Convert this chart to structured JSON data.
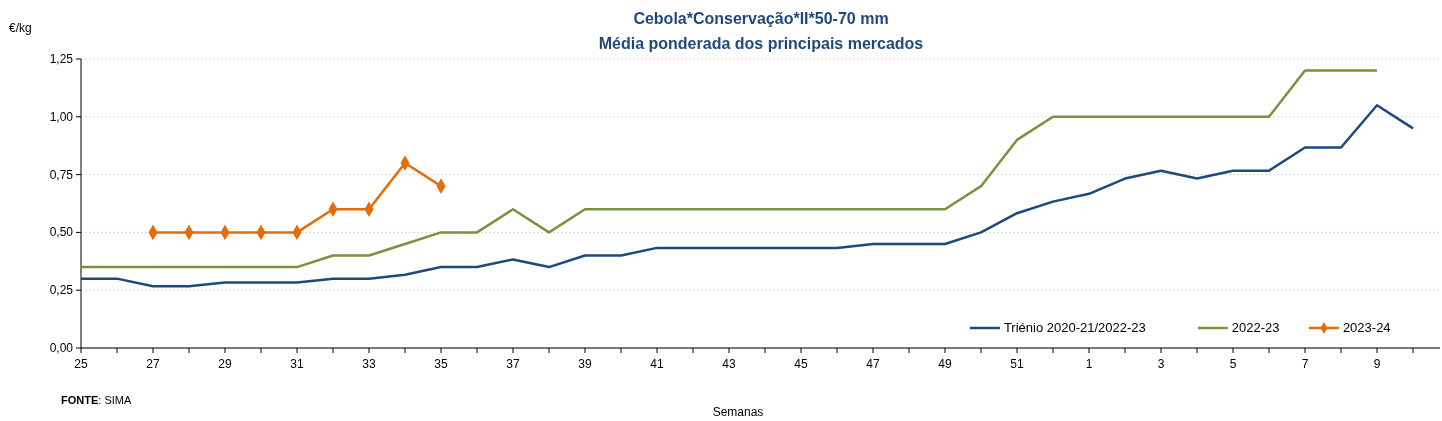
{
  "chart_data": {
    "type": "line",
    "title": "Cebola*Conservação*II*50-70 mm",
    "subtitle": "Média ponderada dos principais mercados",
    "ylabel": "€/kg",
    "xlabel": "Semanas",
    "categories": [
      "25",
      null,
      "27",
      null,
      "29",
      null,
      "31",
      null,
      "33",
      null,
      "35",
      null,
      "37",
      null,
      "39",
      null,
      "41",
      null,
      "43",
      null,
      "45",
      null,
      "47",
      null,
      "49",
      null,
      "51",
      null,
      "1",
      null,
      "3",
      null,
      "5",
      null,
      "7",
      null,
      "9",
      null
    ],
    "series": [
      {
        "name": "Triénio 2020-21/2022-23",
        "color": "#1f497d",
        "marker": "none",
        "values": [
          0.3,
          0.3,
          0.267,
          0.267,
          0.283,
          0.283,
          0.283,
          0.3,
          0.3,
          0.317,
          0.35,
          0.35,
          0.383,
          0.35,
          0.4,
          0.4,
          0.433,
          0.433,
          0.433,
          0.433,
          0.433,
          0.433,
          0.45,
          0.45,
          0.45,
          0.5,
          0.583,
          0.633,
          0.667,
          0.733,
          0.767,
          0.733,
          0.767,
          0.767,
          0.867,
          0.867,
          1.05,
          0.95
        ]
      },
      {
        "name": "2022-23",
        "color": "#77933c",
        "marker": "none",
        "values": [
          0.35,
          0.35,
          0.35,
          0.35,
          0.35,
          0.35,
          0.35,
          0.4,
          0.4,
          0.45,
          0.5,
          0.5,
          0.6,
          0.5,
          0.6,
          0.6,
          0.6,
          0.6,
          0.6,
          0.6,
          0.6,
          0.6,
          0.6,
          0.6,
          0.6,
          0.7,
          0.9,
          1.0,
          1.0,
          1.0,
          1.0,
          1.0,
          1.0,
          1.0,
          1.2,
          1.2,
          1.2,
          null
        ]
      },
      {
        "name": "2023-24",
        "color": "#e46c0a",
        "marker": "diamond",
        "values": [
          null,
          null,
          0.5,
          0.5,
          0.5,
          0.5,
          0.5,
          0.6,
          0.6,
          0.8,
          0.7,
          null,
          null,
          null,
          null,
          null,
          null,
          null,
          null,
          null,
          null,
          null,
          null,
          null,
          null,
          null,
          null,
          null,
          null,
          null,
          null,
          null,
          null,
          null,
          null,
          null,
          null,
          null
        ]
      }
    ],
    "ylim": [
      0,
      1.25
    ],
    "yticks": [
      {
        "value": 0,
        "label": "0,00"
      },
      {
        "value": 0.25,
        "label": "0,25"
      },
      {
        "value": 0.5,
        "label": "0,50"
      },
      {
        "value": 0.75,
        "label": "0,75"
      },
      {
        "value": 1,
        "label": "1,00"
      },
      {
        "value": 1.25,
        "label": "1,25"
      }
    ],
    "grid": "y",
    "legend": "bottom right",
    "line_style": "solid",
    "annotations": [
      "FONTE: SIMA"
    ]
  }
}
